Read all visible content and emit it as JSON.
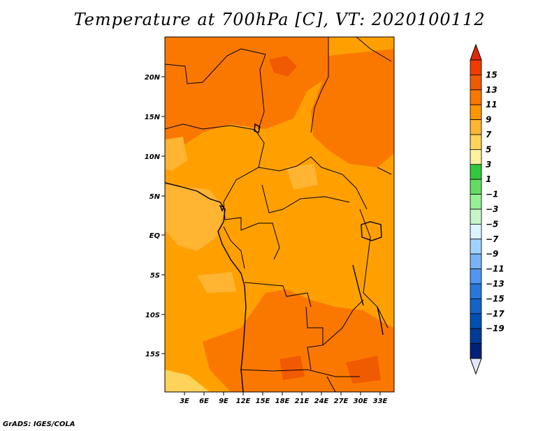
{
  "title": "Temperature at 700hPa [C], VT: 2020100112",
  "credit": "GrADS: IGES/COLA",
  "map": {
    "lat_labels": [
      "20N",
      "15N",
      "10N",
      "5N",
      "EQ",
      "5S",
      "10S",
      "15S"
    ],
    "lon_labels": [
      "3E",
      "6E",
      "9E",
      "12E",
      "15E",
      "18E",
      "21E",
      "24E",
      "27E",
      "30E",
      "33E"
    ],
    "base_color": "#FFA000"
  },
  "colorbar": {
    "labels": [
      "15",
      "13",
      "11",
      "9",
      "7",
      "5",
      "3",
      "1",
      "−1",
      "−3",
      "−5",
      "−7",
      "−9",
      "−11",
      "−13",
      "−15",
      "−17",
      "−19"
    ],
    "colors": [
      "#F03C00",
      "#F05A00",
      "#FA7800",
      "#FF9600",
      "#FFB432",
      "#FFD25A",
      "#FFF0A0",
      "#32C83C",
      "#64DC64",
      "#96F096",
      "#C8F5C8",
      "#DCF5FF",
      "#A0D2FF",
      "#78B4F5",
      "#5096F0",
      "#2878DC",
      "#1464C8",
      "#0050B4",
      "#003C96",
      "#00207A"
    ],
    "top_arrow_color": "#E0280A",
    "bottom_arrow_color": "#E6E6FA"
  }
}
